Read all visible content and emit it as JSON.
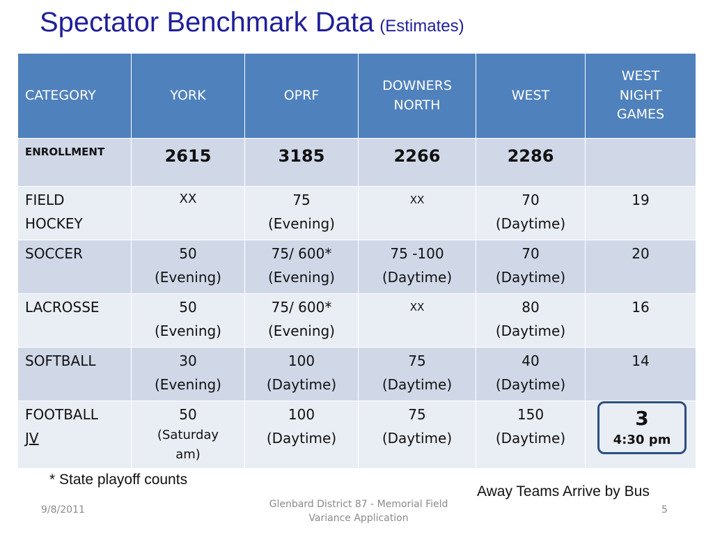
{
  "slide": {
    "title_main": "Spectator Benchmark Data",
    "title_sub": "(Estimates)"
  },
  "table": {
    "headers": [
      "CATEGORY",
      "YORK",
      "OPRF",
      "DOWNERS NORTH",
      "WEST",
      "WEST NIGHT GAMES"
    ],
    "header_lines": {
      "downers": [
        "DOWNERS",
        "NORTH"
      ],
      "night": [
        "WEST",
        "NIGHT",
        "GAMES"
      ]
    },
    "enrollment": {
      "label": "ENROLLMENT",
      "values": [
        "2615",
        "3185",
        "2266",
        "2286",
        ""
      ]
    },
    "rows": [
      {
        "category": [
          "FIELD",
          "HOCKEY"
        ],
        "cells": [
          [
            "XX"
          ],
          [
            "75",
            "(Evening)"
          ],
          [
            "XX"
          ],
          [
            "70",
            "(Daytime)"
          ],
          [
            "19"
          ]
        ]
      },
      {
        "category": [
          "SOCCER"
        ],
        "cells": [
          [
            "50",
            "(Evening)"
          ],
          [
            "75/ 600*",
            "(Evening)"
          ],
          [
            "75 -100",
            "(Daytime)"
          ],
          [
            "70",
            "(Daytime)"
          ],
          [
            "20"
          ]
        ]
      },
      {
        "category": [
          "LACROSSE"
        ],
        "cells": [
          [
            "50",
            "(Evening)"
          ],
          [
            "75/ 600*",
            "(Evening)"
          ],
          [
            "XX"
          ],
          [
            "80",
            "(Daytime)"
          ],
          [
            "16"
          ]
        ]
      },
      {
        "category": [
          "SOFTBALL"
        ],
        "cells": [
          [
            "30",
            "(Evening)"
          ],
          [
            "100",
            "(Daytime)"
          ],
          [
            "75",
            "(Daytime)"
          ],
          [
            "40",
            "(Daytime)"
          ],
          [
            "14"
          ]
        ]
      },
      {
        "category": [
          "FOOTBALL",
          "JV"
        ],
        "cells": [
          [
            "50",
            "(Saturday",
            "am)"
          ],
          [
            "100",
            "(Daytime)"
          ],
          [
            "75",
            "(Daytime)"
          ],
          [
            "150",
            "(Daytime)"
          ],
          [
            "3",
            "4:30 pm"
          ]
        ]
      }
    ]
  },
  "notes": {
    "footnote": "* State playoff counts",
    "away": "Away Teams Arrive by Bus"
  },
  "footer": {
    "date": "9/8/2011",
    "center_line1": "Glenbard District 87 - Memorial Field",
    "center_line2": "Variance Application",
    "page": "5"
  },
  "colors": {
    "title": "#1f1f99",
    "header_bg": "#4f81bd",
    "row_dark": "#d0d8e8",
    "row_light": "#e9edf4",
    "highlight_border": "#2c4f80"
  }
}
